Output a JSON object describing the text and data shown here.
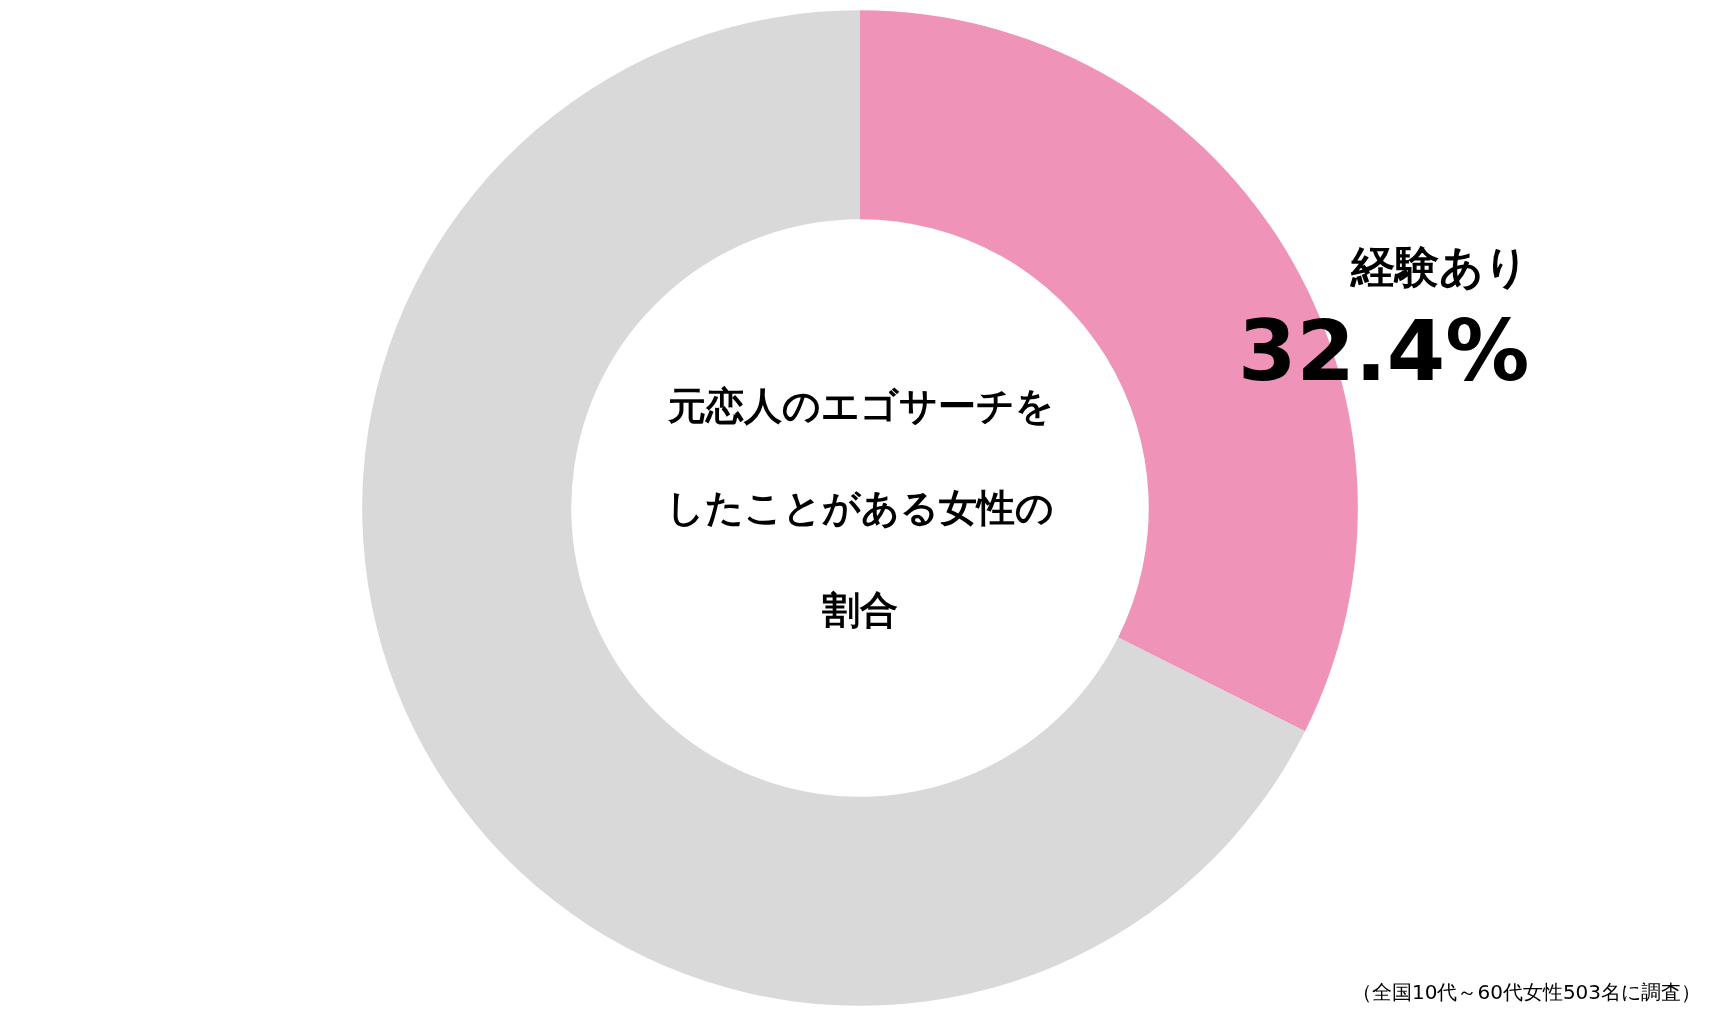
{
  "chart_data": {
    "type": "donut",
    "title": "元恋人のエゴサーチをしたことがある女性の割合",
    "categories": [
      "経験あり",
      null
    ],
    "values": [
      32.4,
      67.6
    ],
    "value_labels": [
      "32.4%",
      null
    ],
    "colors": [
      "#ef93b9",
      "#d9d9d9"
    ],
    "legend": false,
    "annotations": [
      "（全国10代～60代女性503名に調査）"
    ]
  }
}
